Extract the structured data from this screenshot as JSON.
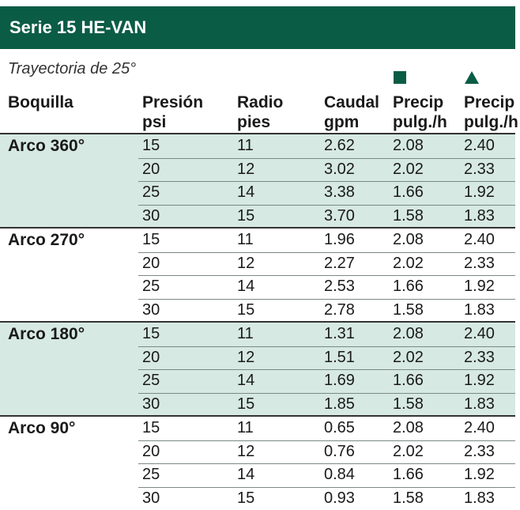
{
  "header": {
    "title": "Serie 15 HE-VAN"
  },
  "subtitle": "Trayectoria de 25°",
  "columns": [
    {
      "line1": "Boquilla"
    },
    {
      "line1": "Presión",
      "line2": "psi"
    },
    {
      "line1": "Radio",
      "line2": "pies"
    },
    {
      "line1": "Caudal",
      "line2": "gpm"
    },
    {
      "line1": "Precip",
      "line2": "pulg./h"
    },
    {
      "line1": "Precip",
      "line2": "pulg./h"
    }
  ],
  "groups": [
    {
      "label": "Arco 360°",
      "rows": [
        [
          "15",
          "11",
          "2.62",
          "2.08",
          "2.40"
        ],
        [
          "20",
          "12",
          "3.02",
          "2.02",
          "2.33"
        ],
        [
          "25",
          "14",
          "3.38",
          "1.66",
          "1.92"
        ],
        [
          "30",
          "15",
          "3.70",
          "1.58",
          "1.83"
        ]
      ]
    },
    {
      "label": "Arco 270°",
      "rows": [
        [
          "15",
          "11",
          "1.96",
          "2.08",
          "2.40"
        ],
        [
          "20",
          "12",
          "2.27",
          "2.02",
          "2.33"
        ],
        [
          "25",
          "14",
          "2.53",
          "1.66",
          "1.92"
        ],
        [
          "30",
          "15",
          "2.78",
          "1.58",
          "1.83"
        ]
      ]
    },
    {
      "label": "Arco 180°",
      "rows": [
        [
          "15",
          "11",
          "1.31",
          "2.08",
          "2.40"
        ],
        [
          "20",
          "12",
          "1.51",
          "2.02",
          "2.33"
        ],
        [
          "25",
          "14",
          "1.69",
          "1.66",
          "1.92"
        ],
        [
          "30",
          "15",
          "1.85",
          "1.58",
          "1.83"
        ]
      ]
    },
    {
      "label": "Arco 90°",
      "rows": [
        [
          "15",
          "11",
          "0.65",
          "2.08",
          "2.40"
        ],
        [
          "20",
          "12",
          "0.76",
          "2.02",
          "2.33"
        ],
        [
          "25",
          "14",
          "0.84",
          "1.66",
          "1.92"
        ],
        [
          "30",
          "15",
          "0.93",
          "1.58",
          "1.83"
        ]
      ]
    }
  ]
}
